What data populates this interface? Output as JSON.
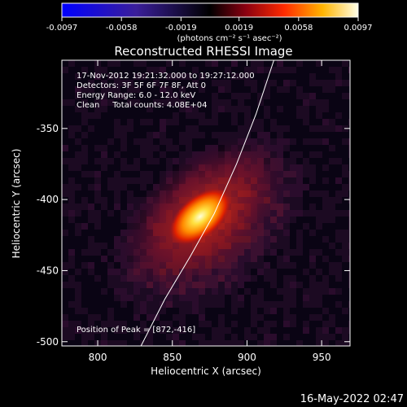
{
  "chart_data": {
    "type": "heatmap",
    "title": "Reconstructed RHESSI Image",
    "xlabel": "Heliocentric X (arcsec)",
    "ylabel": "Heliocentric Y (arcsec)",
    "xlim": [
      776,
      969
    ],
    "ylim": [
      -503,
      -302
    ],
    "x_ticks": [
      800,
      850,
      900,
      950
    ],
    "y_ticks": [
      -350,
      -400,
      -450,
      -500
    ],
    "colorbar": {
      "ticks": [
        "-0.0097",
        "-0.0058",
        "-0.0019",
        "0.0019",
        "0.0058",
        "0.0097"
      ],
      "unit_label": "(photons cm⁻² s⁻¹ asec⁻²)",
      "range": [
        -0.0097,
        0.0097
      ]
    },
    "annotations": [
      "17-Nov-2012 19:21:32.000 to 19:27:12.000",
      "Detectors: 3F 5F 6F 7F 8F, Att 0",
      "Energy Range: 6.0 - 12.0 keV",
      "Clean     Total counts: 4.08E+04"
    ],
    "peak_label": "Position of Peak = [872,-416]",
    "peak": [
      872,
      -416
    ],
    "limb_curve": [
      [
        829,
        -503
      ],
      [
        845,
        -470
      ],
      [
        862,
        -440
      ],
      [
        878,
        -410
      ],
      [
        893,
        -375
      ],
      [
        906,
        -340
      ],
      [
        918,
        -302
      ]
    ],
    "timestamp": "16-May-2022 02:47"
  }
}
